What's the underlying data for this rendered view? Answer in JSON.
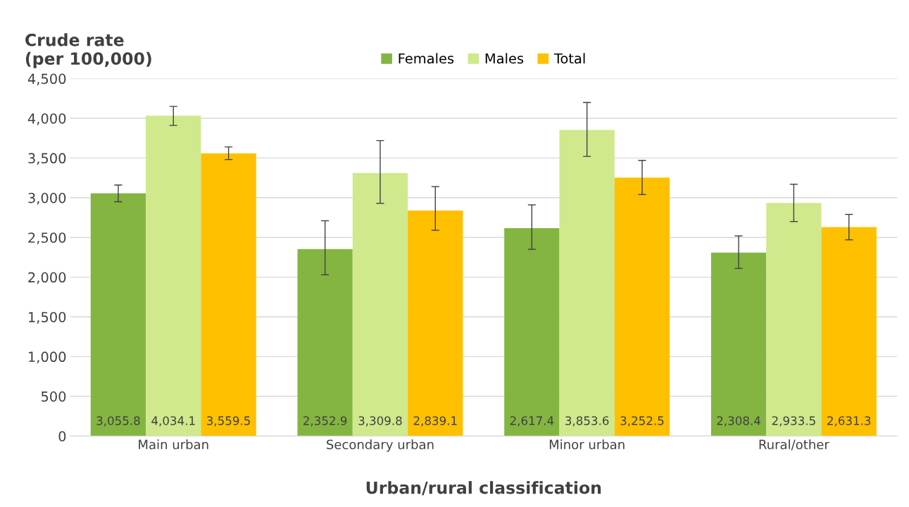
{
  "chart_data": {
    "type": "bar",
    "ylabel": "Crude rate\n(per 100,000)",
    "xlabel": "Urban/rural classification",
    "categories": [
      "Main urban",
      "Secondary urban",
      "Minor urban",
      "Rural/other"
    ],
    "series": [
      {
        "name": "Females",
        "color": "#84b541",
        "values": [
          3055.8,
          2352.9,
          2617.4,
          2308.4
        ],
        "value_labels": [
          "3,055.8",
          "2,352.9",
          "2,617.4",
          "2,308.4"
        ],
        "errors": [
          [
            2950,
            3160
          ],
          [
            2030,
            2710
          ],
          [
            2350,
            2910
          ],
          [
            2110,
            2520
          ]
        ]
      },
      {
        "name": "Males",
        "color": "#cfe98c",
        "values": [
          4034.1,
          3309.8,
          3853.6,
          2933.5
        ],
        "value_labels": [
          "4,034.1",
          "3,309.8",
          "3,853.6",
          "2,933.5"
        ],
        "errors": [
          [
            3910,
            4150
          ],
          [
            2930,
            3720
          ],
          [
            3520,
            4200
          ],
          [
            2700,
            3170
          ]
        ]
      },
      {
        "name": "Total",
        "color": "#ffc000",
        "values": [
          3559.5,
          2839.1,
          3252.5,
          2631.3
        ],
        "value_labels": [
          "3,559.5",
          "2,839.1",
          "3,252.5",
          "2,631.3"
        ],
        "errors": [
          [
            3480,
            3640
          ],
          [
            2590,
            3140
          ],
          [
            3040,
            3470
          ],
          [
            2470,
            2790
          ]
        ]
      }
    ],
    "ylim": [
      0,
      4500
    ],
    "yticks": [
      0,
      500,
      {
        "value": 1000,
        "label": "1,000"
      },
      {
        "value": 1500,
        "label": "1,500"
      },
      {
        "value": 2000,
        "label": "2,000"
      },
      {
        "value": 2500,
        "label": "2,500"
      },
      {
        "value": 3000,
        "label": "3,000"
      },
      {
        "value": 3500,
        "label": "3,500"
      },
      {
        "value": 4000,
        "label": "4,000"
      },
      {
        "value": 4500,
        "label": "4,500"
      }
    ],
    "grid": "y",
    "legend": "top"
  }
}
